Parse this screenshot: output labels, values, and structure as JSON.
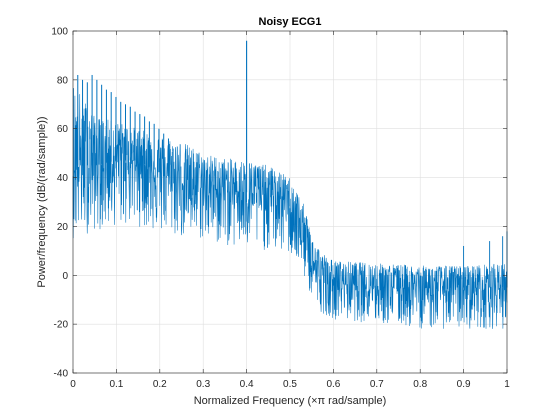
{
  "chart_data": {
    "type": "line",
    "title": "Noisy ECG1",
    "xlabel": "Normalized Frequency  (×π rad/sample)",
    "ylabel": "Power/frequency (dB/(rad/sample))",
    "xlim": [
      0,
      1
    ],
    "ylim": [
      -40,
      100
    ],
    "xticks": [
      0,
      0.1,
      0.2,
      0.3,
      0.4,
      0.5,
      0.6,
      0.7,
      0.8,
      0.9,
      1
    ],
    "xtick_labels": [
      "0",
      "0.1",
      "0.2",
      "0.3",
      "0.4",
      "0.5",
      "0.6",
      "0.7",
      "0.8",
      "0.9",
      "1"
    ],
    "yticks": [
      -40,
      -20,
      0,
      20,
      40,
      60,
      80,
      100
    ],
    "ytick_labels": [
      "-40",
      "-20",
      "0",
      "20",
      "40",
      "60",
      "80",
      "100"
    ],
    "grid": true,
    "series": [
      {
        "color": "#0072bd",
        "envelope": {
          "x": [
            0,
            0.05,
            0.1,
            0.15,
            0.2,
            0.25,
            0.3,
            0.35,
            0.4,
            0.45,
            0.5,
            0.53,
            0.55,
            0.57,
            0.6,
            0.7,
            0.8,
            0.9,
            1.0
          ],
          "upper": [
            80,
            65,
            63,
            60,
            57,
            55,
            50,
            48,
            47,
            45,
            40,
            30,
            18,
            10,
            6,
            5,
            4,
            4,
            5
          ],
          "lower": [
            15,
            18,
            20,
            20,
            17,
            15,
            14,
            12,
            10,
            10,
            8,
            0,
            -10,
            -15,
            -18,
            -20,
            -22,
            -22,
            -22
          ],
          "center": [
            45,
            45,
            47,
            47,
            42,
            38,
            36,
            35,
            34,
            33,
            30,
            15,
            5,
            -2,
            -3,
            -4,
            -5,
            -5,
            -5
          ]
        },
        "harmonic_peaks": {
          "x": [
            0.011,
            0.022,
            0.033,
            0.044,
            0.055,
            0.066,
            0.077,
            0.088,
            0.099,
            0.11,
            0.121,
            0.132,
            0.143,
            0.154,
            0.165,
            0.176,
            0.187,
            0.198,
            0.209,
            0.22
          ],
          "y": [
            82,
            80,
            79,
            82,
            80,
            78,
            76,
            75,
            73,
            71,
            70,
            69,
            67,
            66,
            65,
            63,
            62,
            60,
            58,
            56
          ]
        },
        "spike": {
          "x": 0.4,
          "y": 96
        },
        "tail_spikes": {
          "x": [
            0.9,
            0.96,
            0.99,
            1.0
          ],
          "y": [
            12,
            14,
            16,
            18
          ]
        }
      }
    ]
  }
}
